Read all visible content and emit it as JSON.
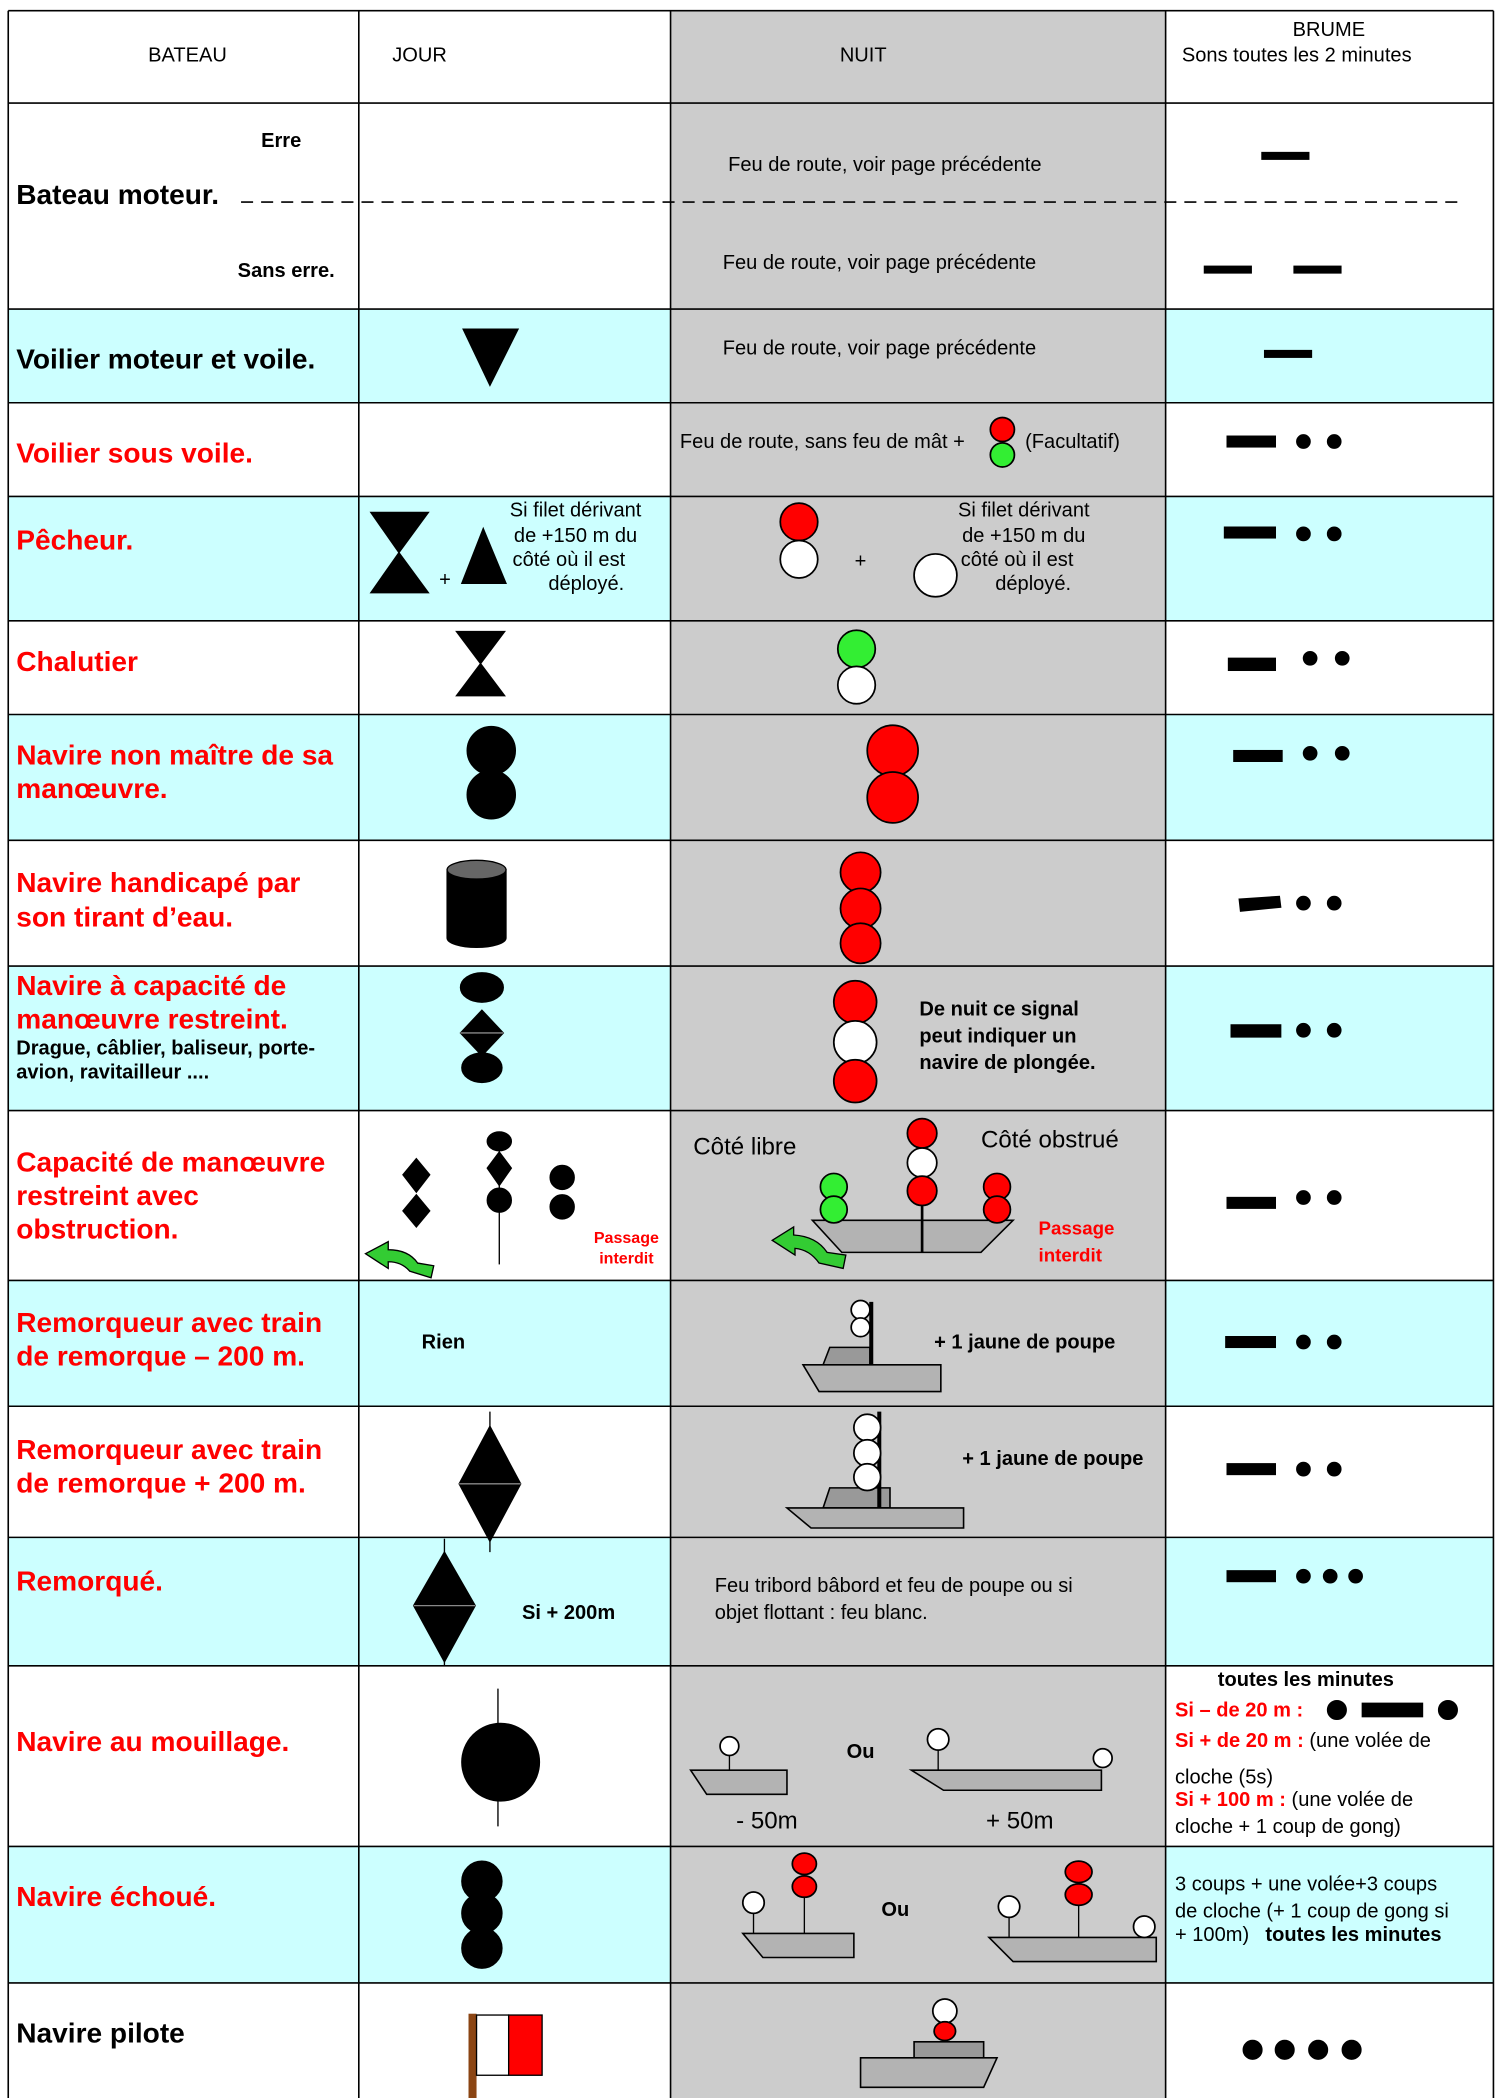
{
  "header": {
    "bateau": "BATEAU",
    "jour": "JOUR",
    "nuit": "NUIT",
    "brume": "BRUME",
    "brume_note": "Sons toutes les 2 minutes"
  },
  "rows": [
    {
      "bateau": "Bateau moteur.",
      "erre": "Erre",
      "sans_erre": "Sans erre.",
      "nuit": [
        "Feu de route, voir page précédente",
        "Feu de route, voir page précédente"
      ]
    },
    {
      "bateau": "Voilier moteur et voile.",
      "nuit": "Feu de route, voir page précédente"
    },
    {
      "bateau": "Voilier sous voile.",
      "nuit": [
        "Feu de route, sans feu de mât +",
        "(Facultatif)"
      ]
    },
    {
      "bateau": "Pêcheur.",
      "jour": [
        "Si filet dérivant",
        "de +150 m du",
        "côté où il est",
        "déployé."
      ],
      "jour_plus": "+",
      "nuit": [
        "Si filet dérivant",
        "de +150 m du",
        "côté où il est",
        "déployé."
      ],
      "nuit_plus": "+"
    },
    {
      "bateau": "Chalutier"
    },
    {
      "bateau": [
        "Navire non maître de sa",
        "manœuvre."
      ]
    },
    {
      "bateau": [
        "Navire handicapé par",
        "son tirant d’eau."
      ]
    },
    {
      "bateau": [
        "Navire à capacité de",
        "manœuvre restreint."
      ],
      "exemples": [
        "Drague, câblier, baliseur, porte-",
        "avion, ravitailleur ...."
      ],
      "nuit": [
        "De nuit ce signal",
        "peut indiquer un",
        "navire de plongée."
      ]
    },
    {
      "bateau": [
        "Capacité de manœuvre",
        "restreint avec",
        "obstruction."
      ],
      "jour": [
        "Passage",
        "interdit"
      ],
      "nuit": {
        "libre": "Côté libre",
        "obstrue": "Côté obstrué",
        "passage": [
          "Passage",
          "interdit"
        ]
      }
    },
    {
      "bateau": [
        "Remorqueur avec train",
        "de remorque – 200 m."
      ],
      "jour": "Rien",
      "nuit": "+ 1 jaune  de poupe"
    },
    {
      "bateau": [
        "Remorqueur avec train",
        "de remorque + 200 m."
      ],
      "nuit": "+ 1 jaune de poupe"
    },
    {
      "bateau": "Remorqué.",
      "jour": "Si + 200m",
      "nuit": [
        "Feu tribord bâbord et feu de poupe ou si",
        "objet flottant : feu blanc."
      ]
    },
    {
      "bateau": "Navire au mouillage.",
      "nuit": {
        "ou": "Ou",
        "petit": "- 50m",
        "grand": "+ 50m"
      },
      "brume": {
        "titre": "toutes les minutes",
        "moins20": "Si – de 20 m :",
        "plus20": "Si + de 20 m :",
        "plus20_son": "(une volée de",
        "plus20_suite": "cloche (5s)",
        "plus100": "Si + 100 m :",
        "plus100_son": "(une volée de",
        "plus100_suite": "cloche + 1 coup de gong)"
      }
    },
    {
      "bateau": "Navire échoué.",
      "nuit": "Ou",
      "brume": [
        "3 coups + une volée+3 coups",
        "de cloche (+ 1 coup de gong si",
        "+ 100m)",
        "toutes les minutes"
      ]
    },
    {
      "bateau": "Navire pilote"
    }
  ]
}
